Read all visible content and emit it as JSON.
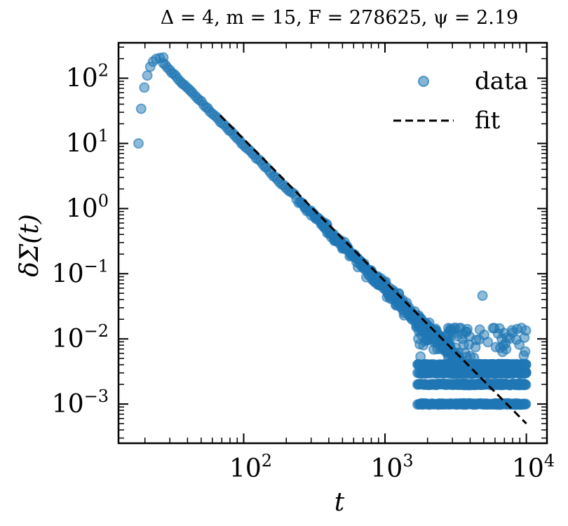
{
  "chart_data": {
    "type": "scatter",
    "title": "Δ = 4, m = 15, F = 278625, ψ = 2.19",
    "xlabel": "t",
    "ylabel": "δΣ(t)",
    "xscale": "log",
    "yscale": "log",
    "xlim": [
      13,
      14000
    ],
    "ylim": [
      0.00025,
      350
    ],
    "x_major_ticks": [
      {
        "value": 100,
        "base": "10",
        "exp": "2"
      },
      {
        "value": 1000,
        "base": "10",
        "exp": "3"
      },
      {
        "value": 10000,
        "base": "10",
        "exp": "4"
      }
    ],
    "y_major_ticks": [
      {
        "value": 100,
        "base": "10",
        "exp": "2"
      },
      {
        "value": 10,
        "base": "10",
        "exp": "1"
      },
      {
        "value": 1,
        "base": "10",
        "exp": "0"
      },
      {
        "value": 0.1,
        "base": "10",
        "exp": "−1"
      },
      {
        "value": 0.01,
        "base": "10",
        "exp": "−2"
      },
      {
        "value": 0.001,
        "base": "10",
        "exp": "−3"
      }
    ],
    "legend_position": "top-right",
    "series": [
      {
        "name": "data",
        "kind": "scatter",
        "color": "#1f77b4",
        "rise_points": [
          {
            "t": 18.0,
            "y": 10
          },
          {
            "t": 18.8,
            "y": 34
          },
          {
            "t": 19.8,
            "y": 72
          },
          {
            "t": 20.8,
            "y": 110
          },
          {
            "t": 21.8,
            "y": 150
          },
          {
            "t": 22.8,
            "y": 180
          },
          {
            "t": 24.0,
            "y": 198
          },
          {
            "t": 25.5,
            "y": 205
          },
          {
            "t": 27.0,
            "y": 208
          }
        ],
        "decay": {
          "amplitude": 227000.0,
          "exponent": -2.19,
          "t_start": 27,
          "t_end": 10000
        },
        "noise_floor_levels": [
          0.001,
          0.002,
          0.003,
          0.004
        ],
        "outliers": [
          {
            "t": 1250,
            "y": 0.05
          },
          {
            "t": 4900,
            "y": 0.046
          },
          {
            "t": 2950,
            "y": 0.001
          },
          {
            "t": 7300,
            "y": 0.0105
          }
        ]
      },
      {
        "name": "fit",
        "kind": "line",
        "style": "dashed",
        "color": "#000000",
        "t_start": 68,
        "t_end": 10000,
        "y_start": 27,
        "y_end": 0.0005
      }
    ]
  }
}
